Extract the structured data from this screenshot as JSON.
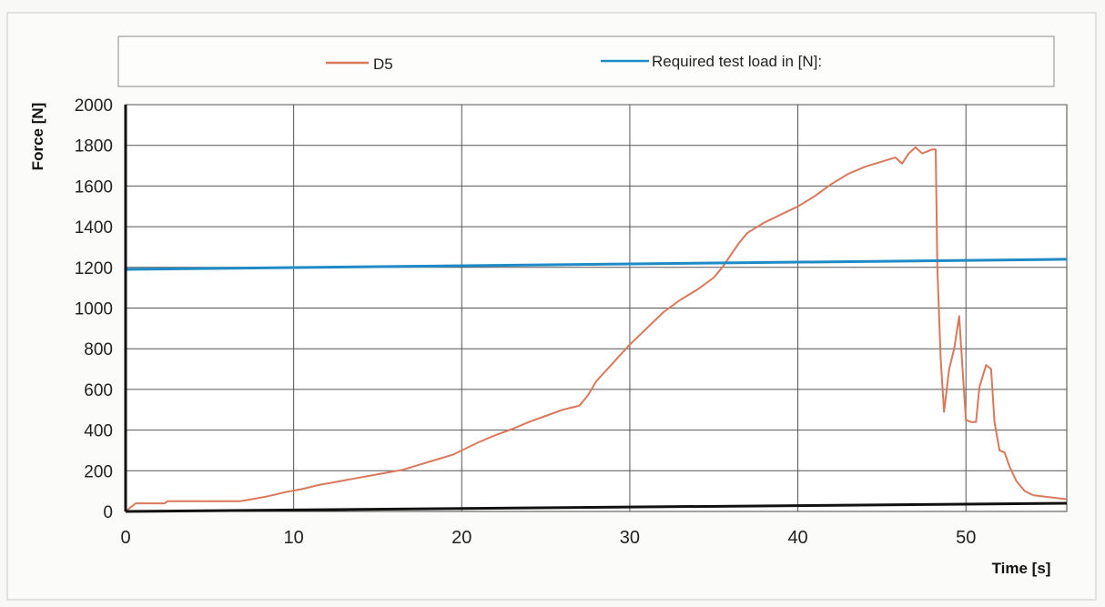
{
  "chart_data": {
    "type": "line",
    "xlabel": "Time [s]",
    "ylabel": "Force [N]",
    "xlim": [
      0,
      56
    ],
    "ylim": [
      0,
      2000
    ],
    "x_ticks": [
      0,
      10,
      20,
      30,
      40,
      50
    ],
    "y_ticks": [
      0,
      200,
      400,
      600,
      800,
      1000,
      1200,
      1400,
      1600,
      1800,
      2000
    ],
    "grid": true,
    "legend_placement": "top",
    "series": [
      {
        "name": "D5",
        "color": "#d9785a",
        "points": [
          [
            0,
            0
          ],
          [
            0.3,
            20
          ],
          [
            0.6,
            40
          ],
          [
            1.5,
            40
          ],
          [
            2.3,
            40
          ],
          [
            2.5,
            50
          ],
          [
            4,
            50
          ],
          [
            5,
            50
          ],
          [
            6,
            50
          ],
          [
            6.8,
            50
          ],
          [
            7.5,
            60
          ],
          [
            8.5,
            75
          ],
          [
            9.5,
            95
          ],
          [
            10.5,
            110
          ],
          [
            11.5,
            130
          ],
          [
            12.5,
            145
          ],
          [
            13.5,
            160
          ],
          [
            14.5,
            175
          ],
          [
            15.5,
            190
          ],
          [
            16.5,
            205
          ],
          [
            17.5,
            230
          ],
          [
            18.5,
            255
          ],
          [
            19.5,
            280
          ],
          [
            20,
            300
          ],
          [
            21,
            340
          ],
          [
            22,
            375
          ],
          [
            23,
            405
          ],
          [
            24,
            440
          ],
          [
            25,
            470
          ],
          [
            26,
            500
          ],
          [
            26.5,
            510
          ],
          [
            27,
            520
          ],
          [
            27.5,
            570
          ],
          [
            28,
            640
          ],
          [
            29,
            730
          ],
          [
            30,
            820
          ],
          [
            31,
            900
          ],
          [
            32,
            980
          ],
          [
            33,
            1040
          ],
          [
            34,
            1090
          ],
          [
            35,
            1150
          ],
          [
            35.5,
            1200
          ],
          [
            36,
            1260
          ],
          [
            36.5,
            1320
          ],
          [
            37,
            1370
          ],
          [
            38,
            1420
          ],
          [
            39,
            1460
          ],
          [
            40,
            1500
          ],
          [
            41,
            1550
          ],
          [
            42,
            1610
          ],
          [
            43,
            1660
          ],
          [
            44,
            1695
          ],
          [
            45,
            1720
          ],
          [
            45.8,
            1740
          ],
          [
            46.2,
            1710
          ],
          [
            46.6,
            1760
          ],
          [
            47,
            1790
          ],
          [
            47.4,
            1760
          ],
          [
            48,
            1780
          ],
          [
            48.2,
            1780
          ],
          [
            48.3,
            1200
          ],
          [
            48.5,
            750
          ],
          [
            48.7,
            490
          ],
          [
            49,
            700
          ],
          [
            49.3,
            800
          ],
          [
            49.6,
            960
          ],
          [
            49.8,
            700
          ],
          [
            50,
            450
          ],
          [
            50.3,
            440
          ],
          [
            50.6,
            440
          ],
          [
            50.8,
            610
          ],
          [
            51.2,
            720
          ],
          [
            51.5,
            700
          ],
          [
            51.7,
            440
          ],
          [
            52,
            300
          ],
          [
            52.3,
            290
          ],
          [
            52.6,
            220
          ],
          [
            53,
            150
          ],
          [
            53.5,
            100
          ],
          [
            54,
            80
          ],
          [
            55,
            70
          ],
          [
            56,
            60
          ]
        ]
      },
      {
        "name": "Required test load in [N]:",
        "color": "#1f8bc6",
        "points": [
          [
            0,
            1190
          ],
          [
            56,
            1240
          ]
        ]
      }
    ]
  }
}
